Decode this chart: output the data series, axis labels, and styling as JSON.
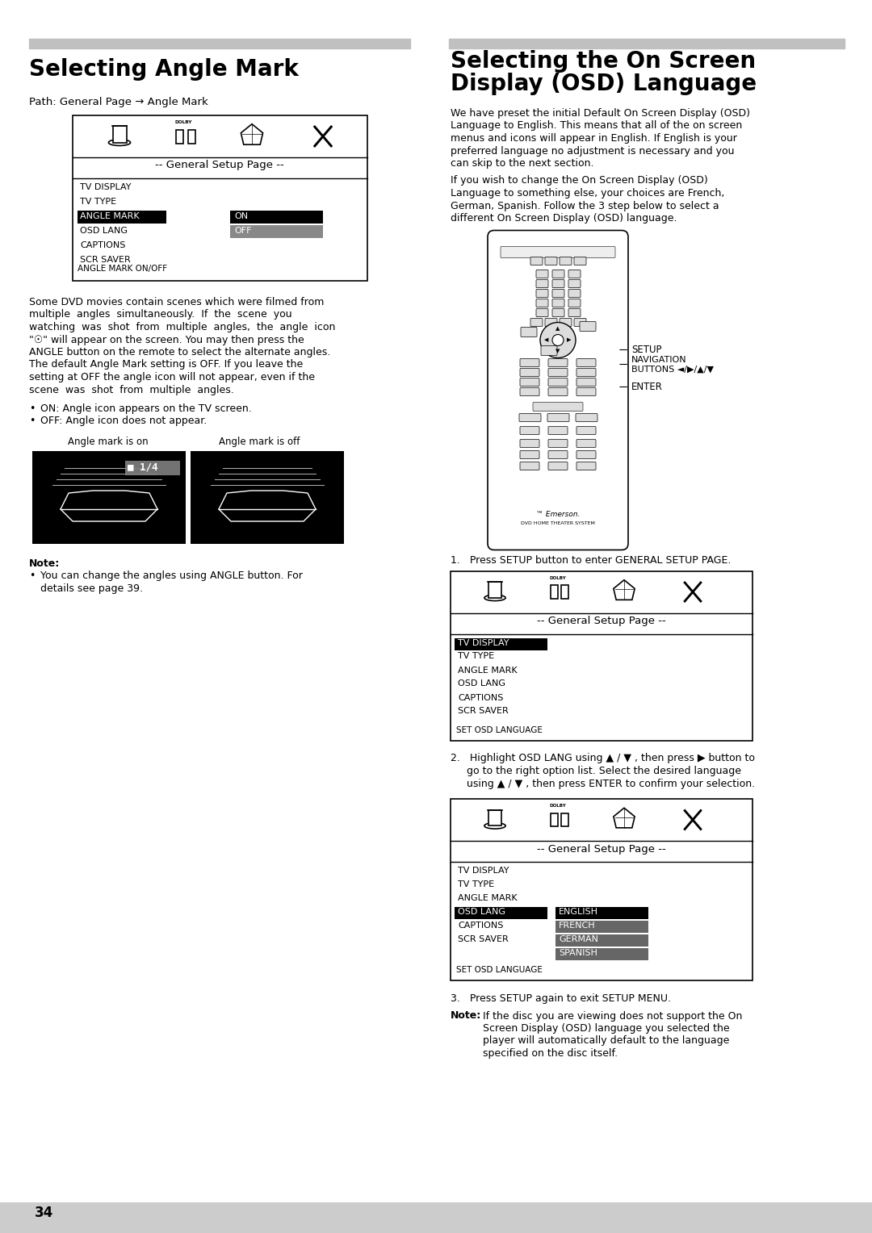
{
  "page_bg": "#ffffff",
  "page_number": "34",
  "left_title": "Selecting Angle Mark",
  "right_title_line1": "Selecting the On Screen",
  "right_title_line2": "Display (OSD) Language",
  "left_path": "Path: General Page → Angle Mark",
  "menu_header": "-- General Setup Page --",
  "menu_items_left": [
    "TV DISPLAY",
    "TV TYPE",
    "ANGLE MARK",
    "OSD LANG",
    "CAPTIONS",
    "SCR SAVER"
  ],
  "footnote_label": "ANGLE MARK ON/OFF",
  "angle_mark_on_label": "Angle mark is on",
  "angle_mark_off_label": "Angle mark is off",
  "note_label": "Note:",
  "note_text_1": "You can change the angles using ANGLE button. For",
  "note_text_2": "details see page 39.",
  "menu2_items": [
    "TV DISPLAY",
    "TV TYPE",
    "ANGLE MARK",
    "OSD LANG",
    "CAPTIONS",
    "SCR SAVER"
  ],
  "menu2_footnote": "SET OSD LANGUAGE",
  "menu3_items": [
    "TV DISPLAY",
    "TV TYPE",
    "ANGLE MARK",
    "OSD LANG",
    "CAPTIONS",
    "SCR SAVER"
  ],
  "menu3_options": [
    "ENGLISH",
    "FRENCH",
    "GERMAN",
    "SPANISH"
  ],
  "menu3_footnote": "SET OSD LANGUAGE",
  "divider_color": "#c0c0c0",
  "gray_bar_color": "#c0c0c0"
}
